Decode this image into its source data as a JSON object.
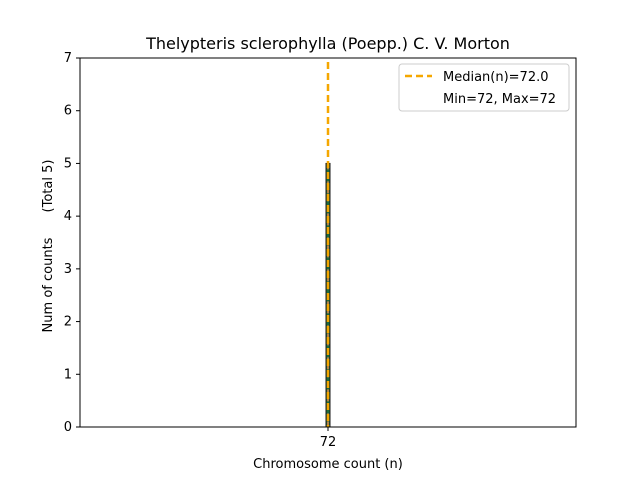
{
  "chart_data": {
    "type": "bar",
    "title": "Thelypteris sclerophylla (Poepp.) C. V. Morton",
    "xlabel": "Chromosome count (n)",
    "ylabel": "Num of counts",
    "ylabel_total": "(Total 5)",
    "categories": [
      "72"
    ],
    "x": [
      72
    ],
    "values": [
      5
    ],
    "ylim": [
      0,
      7
    ],
    "yticks": [
      0,
      1,
      2,
      3,
      4,
      5,
      6,
      7
    ],
    "xticks": [
      72
    ],
    "median": 72.0,
    "legend": {
      "placement": "top-right",
      "median_label": "Median(n)=72.0",
      "range_label": "Min=72, Max=72"
    },
    "colors": {
      "median_line": "#f5a700",
      "bar_edge": "#1a1a1a",
      "bar_fill": "#1f6b3a",
      "bar_dash": "#e8894a"
    }
  }
}
